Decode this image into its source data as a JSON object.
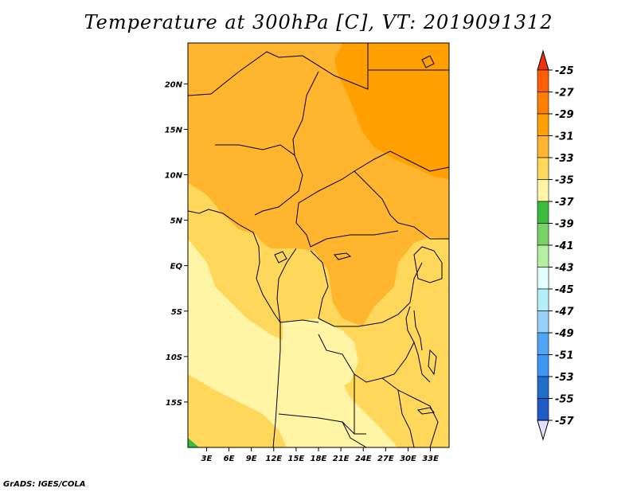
{
  "title": "Temperature at 300hPa [C], VT: 2019091312",
  "credit": "GrADS: IGES/COLA",
  "map": {
    "lon_labels": [
      "3E",
      "6E",
      "9E",
      "12E",
      "15E",
      "18E",
      "21E",
      "24E",
      "27E",
      "30E",
      "33E"
    ],
    "lon_values": [
      3,
      6,
      9,
      12,
      15,
      18,
      21,
      24,
      27,
      30,
      33
    ],
    "lat_labels": [
      "20N",
      "15N",
      "10N",
      "5N",
      "EQ",
      "5S",
      "10S",
      "15S"
    ],
    "lat_values": [
      20,
      15,
      10,
      5,
      0,
      -5,
      -10,
      -15
    ],
    "lon_range": [
      0.5,
      35.5
    ],
    "lat_range": [
      -20,
      24.5
    ]
  },
  "colorbar": {
    "labels": [
      "-25",
      "-27",
      "-29",
      "-31",
      "-33",
      "-35",
      "-37",
      "-39",
      "-41",
      "-43",
      "-45",
      "-47",
      "-49",
      "-51",
      "-53",
      "-55",
      "-57"
    ],
    "colors": [
      "#ff5f00",
      "#ff7f00",
      "#ffa000",
      "#ffb52d",
      "#ffd75a",
      "#fff5a5",
      "#3cbc3c",
      "#78d264",
      "#b4f0a0",
      "#e1ffff",
      "#b4f0fa",
      "#96d2fa",
      "#50a5f5",
      "#3c96f5",
      "#1e6ec8",
      "#1e5ac8",
      "#0a0a78"
    ],
    "top_arrow_color": "#f0320a",
    "bottom_arrow_color": "#e1e1ff"
  }
}
